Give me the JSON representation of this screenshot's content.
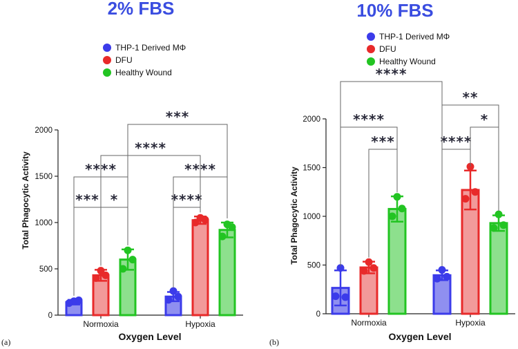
{
  "chart_data": [
    {
      "type": "bar",
      "panel": "(a)",
      "title": "2% FBS",
      "xlabel": "Oxygen Level",
      "ylabel": "Total Phagocytic Activity",
      "categories": [
        "Normoxia",
        "Hypoxia"
      ],
      "ylim": [
        0,
        2000
      ],
      "yticks": [
        0,
        500,
        1000,
        1500,
        2000
      ],
      "series": [
        {
          "name": "THP-1 Derived MΦ",
          "color": "#3b3bea",
          "fill": "#8f8ff0",
          "values": [
            140,
            200
          ],
          "errors": [
            25,
            50
          ],
          "points": [
            [
              150,
              130,
              160
            ],
            [
              260,
              165,
              200
            ]
          ]
        },
        {
          "name": "DFU",
          "color": "#e82a2a",
          "fill": "#f29a9a",
          "values": [
            430,
            1025
          ],
          "errors": [
            60,
            40
          ],
          "points": [
            [
              480,
              400,
              430
            ],
            [
              1050,
              1000,
              1030
            ]
          ]
        },
        {
          "name": "Healthy Wound",
          "color": "#22c422",
          "fill": "#8de08d",
          "values": [
            600,
            920
          ],
          "errors": [
            110,
            80
          ],
          "points": [
            [
              700,
              500,
              600
            ],
            [
              980,
              850,
              950
            ]
          ]
        }
      ],
      "significance": [
        {
          "label": "***",
          "from": [
            0,
            0
          ],
          "to": [
            0,
            1
          ]
        },
        {
          "label": "*",
          "from": [
            0,
            1
          ],
          "to": [
            0,
            2
          ]
        },
        {
          "label": "****",
          "from": [
            0,
            0
          ],
          "to": [
            0,
            2
          ]
        },
        {
          "label": "****",
          "from": [
            1,
            0
          ],
          "to": [
            1,
            1
          ]
        },
        {
          "label": "****",
          "from": [
            1,
            0
          ],
          "to": [
            1,
            2
          ]
        },
        {
          "label": "****",
          "from": [
            0,
            1
          ],
          "to": [
            1,
            1
          ]
        },
        {
          "label": "***",
          "from": [
            0,
            2
          ],
          "to": [
            1,
            2
          ]
        }
      ]
    },
    {
      "type": "bar",
      "panel": "(b)",
      "title": "10% FBS",
      "xlabel": "Oxygen Level",
      "ylabel": "Total Phagocytic Activity",
      "categories": [
        "Normoxia",
        "Hypoxia"
      ],
      "ylim": [
        0,
        2000
      ],
      "yticks": [
        0,
        500,
        1000,
        1500,
        2000
      ],
      "series": [
        {
          "name": "THP-1 Derived MΦ",
          "color": "#3b3bea",
          "fill": "#8f8ff0",
          "values": [
            265,
            395
          ],
          "errors": [
            180,
            50
          ],
          "points": [
            [
              470,
              180,
              170
            ],
            [
              450,
              360,
              380
            ]
          ]
        },
        {
          "name": "DFU",
          "color": "#e82a2a",
          "fill": "#f29a9a",
          "values": [
            475,
            1270
          ],
          "errors": [
            60,
            200
          ],
          "points": [
            [
              530,
              440,
              470
            ],
            [
              1510,
              1180,
              1250
            ]
          ]
        },
        {
          "name": "Healthy Wound",
          "color": "#22c422",
          "fill": "#8de08d",
          "values": [
            1075,
            930
          ],
          "errors": [
            130,
            80
          ],
          "points": [
            [
              1200,
              1000,
              1080
            ],
            [
              1020,
              880,
              910
            ]
          ]
        }
      ],
      "significance": [
        {
          "label": "***",
          "from": [
            0,
            1
          ],
          "to": [
            0,
            2
          ]
        },
        {
          "label": "****",
          "from": [
            0,
            0
          ],
          "to": [
            0,
            2
          ]
        },
        {
          "label": "****",
          "from": [
            1,
            0
          ],
          "to": [
            1,
            1
          ]
        },
        {
          "label": "*",
          "from": [
            1,
            1
          ],
          "to": [
            1,
            2
          ]
        },
        {
          "label": "**",
          "from": [
            1,
            0
          ],
          "to": [
            1,
            2
          ]
        },
        {
          "label": "****",
          "from": [
            0,
            0
          ],
          "to": [
            1,
            0
          ]
        }
      ]
    }
  ]
}
